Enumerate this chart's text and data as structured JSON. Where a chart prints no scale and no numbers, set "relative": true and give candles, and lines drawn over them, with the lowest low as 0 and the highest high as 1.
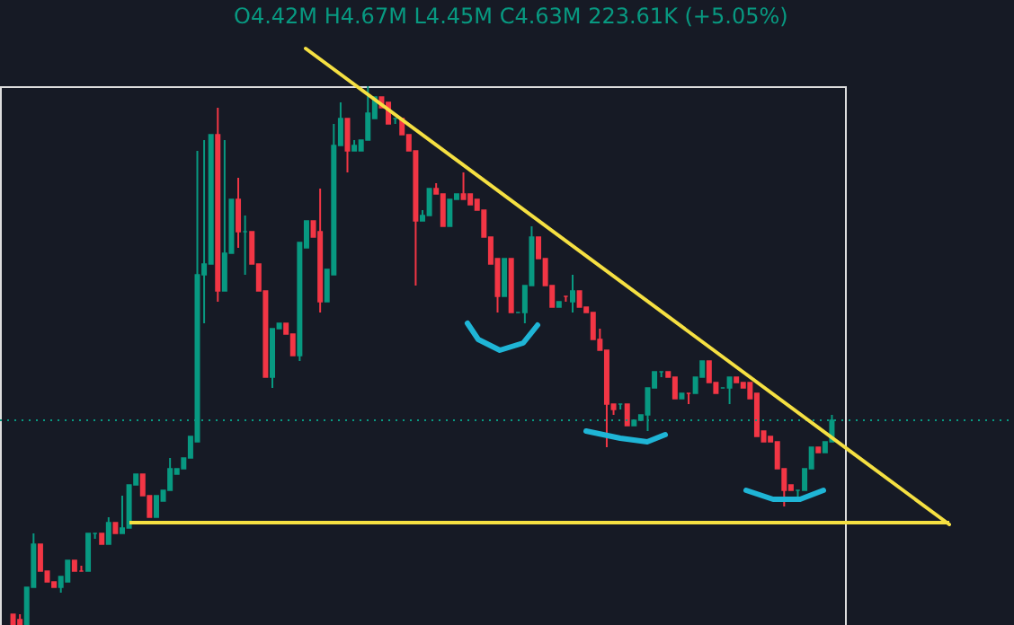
{
  "chart_data": {
    "type": "candlestick",
    "relative": true,
    "annotations": [
      "O4.42M H4.67M L4.45M C4.63M 223.61K (+5.05%)"
    ],
    "colors": [
      "#f23645",
      "#f23645",
      "#089981",
      "#089981",
      "#f23645",
      "#f23645",
      "#f23645",
      "#089981",
      "#089981",
      "#f23645",
      "#f23645",
      "#089981",
      "#089981",
      "#f23645",
      "#089981",
      "#f23645",
      "#089981",
      "#089981",
      "#089981",
      "#f23645",
      "#f23645",
      "#089981",
      "#089981",
      "#089981",
      "#089981",
      "#089981",
      "#089981",
      "#089981",
      "#089981",
      "#089981",
      "#f23645",
      "#089981",
      "#089981",
      "#f23645",
      "#089981",
      "#f23645",
      "#f23645",
      "#f23645",
      "#089981",
      "#089981",
      "#f23645",
      "#f23645",
      "#089981",
      "#089981",
      "#f23645",
      "#f23645",
      "#089981",
      "#089981",
      "#089981",
      "#f23645",
      "#089981",
      "#089981",
      "#089981",
      "#089981",
      "#f23645",
      "#f23645",
      "#089981",
      "#f23645",
      "#f23645",
      "#f23645",
      "#089981",
      "#089981",
      "#f23645",
      "#f23645",
      "#089981",
      "#089981",
      "#f23645",
      "#f23645",
      "#f23645",
      "#f23645",
      "#f23645",
      "#f23645",
      "#089981",
      "#f23645",
      "#089981",
      "#089981",
      "#089981",
      "#f23645",
      "#f23645",
      "#f23645",
      "#089981",
      "#f23645",
      "#089981",
      "#f23645",
      "#f23645",
      "#f23645",
      "#f23645",
      "#f23645",
      "#f23645",
      "#089981",
      "#f23645",
      "#089981",
      "#089981",
      "#089981",
      "#089981",
      "#089981",
      "#f23645",
      "#f23645",
      "#089981",
      "#f23645",
      "#089981",
      "#089981",
      "#f23645",
      "#f23645",
      "#089981",
      "#089981",
      "#f23645",
      "#f23645",
      "#f23645",
      "#f23645",
      "#f23645",
      "#f23645",
      "#f23645",
      "#f23645",
      "#f23645",
      "#089981",
      "#089981",
      "#089981",
      "#f23645",
      "#089981",
      "#089981"
    ],
    "categories": [
      null,
      null,
      null,
      null,
      null,
      null,
      null,
      null,
      null,
      null,
      null,
      null,
      null,
      null,
      null,
      null,
      null,
      null,
      null,
      null,
      null,
      null,
      null,
      null,
      null,
      null,
      null,
      null,
      null,
      null,
      null,
      null,
      null,
      null,
      null,
      null,
      null,
      null,
      null,
      null,
      null,
      null,
      null,
      null,
      null,
      null,
      null,
      null,
      null,
      null,
      null,
      null,
      null,
      null,
      null,
      null,
      null,
      null,
      null,
      null,
      null,
      null,
      null,
      null,
      null,
      null,
      null,
      null,
      null,
      null,
      null,
      null,
      null,
      null,
      null,
      null,
      null,
      null,
      null,
      null,
      null,
      null,
      null,
      null,
      null,
      null,
      null,
      null,
      null,
      null,
      null,
      null,
      null,
      null,
      null,
      null,
      null,
      null,
      null,
      null,
      null,
      null,
      null,
      null,
      null,
      null,
      null,
      null,
      null,
      null,
      null,
      null,
      null,
      null,
      null,
      null,
      null,
      null,
      null,
      null,
      null
    ],
    "ohlc": [
      [
        0.02,
        0.02,
        0,
        0
      ],
      [
        0.01,
        0.02,
        0,
        0
      ],
      [
        0,
        0.07,
        0,
        0.07
      ],
      [
        0.07,
        0.17,
        0.07,
        0.15
      ],
      [
        0.15,
        0.15,
        0.1,
        0.1
      ],
      [
        0.1,
        0.1,
        0.08,
        0.08
      ],
      [
        0.08,
        0.08,
        0.07,
        0.07
      ],
      [
        0.07,
        0.09,
        0.06,
        0.09
      ],
      [
        0.08,
        0.12,
        0.08,
        0.12
      ],
      [
        0.12,
        0.12,
        0.1,
        0.1
      ],
      [
        0.1,
        0.11,
        0.1,
        0.1
      ],
      [
        0.1,
        0.17,
        0.1,
        0.17
      ],
      [
        0.17,
        0.17,
        0.16,
        0.17
      ],
      [
        0.17,
        0.17,
        0.15,
        0.15
      ],
      [
        0.15,
        0.2,
        0.15,
        0.19
      ],
      [
        0.19,
        0.19,
        0.17,
        0.17
      ],
      [
        0.17,
        0.24,
        0.17,
        0.18
      ],
      [
        0.18,
        0.26,
        0.18,
        0.26
      ],
      [
        0.26,
        0.28,
        0.26,
        0.28
      ],
      [
        0.28,
        0.28,
        0.24,
        0.24
      ],
      [
        0.24,
        0.24,
        0.2,
        0.2
      ],
      [
        0.2,
        0.24,
        0.2,
        0.24
      ],
      [
        0.23,
        0.25,
        0.23,
        0.25
      ],
      [
        0.25,
        0.31,
        0.25,
        0.29
      ],
      [
        0.28,
        0.29,
        0.28,
        0.29
      ],
      [
        0.29,
        0.31,
        0.29,
        0.31
      ],
      [
        0.31,
        0.35,
        0.31,
        0.35
      ],
      [
        0.34,
        0.88,
        0.34,
        0.65
      ],
      [
        0.65,
        0.9,
        0.56,
        0.67
      ],
      [
        0.67,
        0.91,
        0.67,
        0.91
      ],
      [
        0.91,
        0.96,
        0.6,
        0.62
      ],
      [
        0.62,
        0.9,
        0.62,
        0.69
      ],
      [
        0.69,
        0.79,
        0.69,
        0.79
      ],
      [
        0.79,
        0.83,
        0.7,
        0.73
      ],
      [
        0.73,
        0.76,
        0.65,
        0.73
      ],
      [
        0.73,
        0.73,
        0.67,
        0.67
      ],
      [
        0.67,
        0.67,
        0.62,
        0.62
      ],
      [
        0.62,
        0.62,
        0.46,
        0.46
      ],
      [
        0.46,
        0.55,
        0.44,
        0.55
      ],
      [
        0.55,
        0.56,
        0.55,
        0.56
      ],
      [
        0.56,
        0.56,
        0.54,
        0.54
      ],
      [
        0.54,
        0.54,
        0.5,
        0.5
      ],
      [
        0.5,
        0.71,
        0.49,
        0.71
      ],
      [
        0.7,
        0.75,
        0.7,
        0.75
      ],
      [
        0.75,
        0.75,
        0.72,
        0.72
      ],
      [
        0.73,
        0.81,
        0.58,
        0.6
      ],
      [
        0.6,
        0.66,
        0.6,
        0.66
      ],
      [
        0.65,
        0.93,
        0.65,
        0.89
      ],
      [
        0.89,
        0.97,
        0.89,
        0.94
      ],
      [
        0.94,
        0.94,
        0.84,
        0.88
      ],
      [
        0.88,
        0.9,
        0.88,
        0.89
      ],
      [
        0.88,
        0.9,
        0.88,
        0.9
      ],
      [
        0.9,
        1.0,
        0.9,
        0.95
      ],
      [
        0.94,
        0.98,
        0.94,
        0.98
      ],
      [
        0.98,
        0.98,
        0.96,
        0.96
      ],
      [
        0.97,
        0.97,
        0.93,
        0.93
      ],
      [
        0.94,
        0.94,
        0.93,
        0.94
      ],
      [
        0.94,
        0.94,
        0.91,
        0.91
      ],
      [
        0.91,
        0.91,
        0.88,
        0.88
      ],
      [
        0.88,
        0.88,
        0.63,
        0.75
      ],
      [
        0.75,
        0.77,
        0.75,
        0.76
      ],
      [
        0.76,
        0.81,
        0.76,
        0.81
      ],
      [
        0.81,
        0.82,
        0.8,
        0.8
      ],
      [
        0.8,
        0.8,
        0.74,
        0.74
      ],
      [
        0.74,
        0.79,
        0.74,
        0.79
      ],
      [
        0.79,
        0.8,
        0.79,
        0.8
      ],
      [
        0.8,
        0.84,
        0.79,
        0.79
      ],
      [
        0.8,
        0.8,
        0.78,
        0.78
      ],
      [
        0.79,
        0.79,
        0.77,
        0.77
      ],
      [
        0.77,
        0.77,
        0.72,
        0.72
      ],
      [
        0.72,
        0.72,
        0.67,
        0.67
      ],
      [
        0.68,
        0.68,
        0.58,
        0.61
      ],
      [
        0.61,
        0.68,
        0.61,
        0.68
      ],
      [
        0.68,
        0.68,
        0.58,
        0.58
      ],
      [
        0.58,
        0.58,
        0.58,
        0.58
      ],
      [
        0.58,
        0.63,
        0.56,
        0.63
      ],
      [
        0.63,
        0.74,
        0.63,
        0.72
      ],
      [
        0.72,
        0.72,
        0.68,
        0.68
      ],
      [
        0.68,
        0.68,
        0.63,
        0.63
      ],
      [
        0.63,
        0.63,
        0.59,
        0.59
      ],
      [
        0.59,
        0.6,
        0.59,
        0.6
      ],
      [
        0.61,
        0.61,
        0.6,
        0.61
      ],
      [
        0.6,
        0.65,
        0.58,
        0.62
      ],
      [
        0.62,
        0.62,
        0.59,
        0.59
      ],
      [
        0.59,
        0.59,
        0.58,
        0.58
      ],
      [
        0.58,
        0.58,
        0.53,
        0.53
      ],
      [
        0.53,
        0.55,
        0.51,
        0.51
      ],
      [
        0.51,
        0.51,
        0.33,
        0.41
      ],
      [
        0.41,
        0.41,
        0.39,
        0.4
      ],
      [
        0.41,
        0.41,
        0.4,
        0.41
      ],
      [
        0.41,
        0.41,
        0.37,
        0.37
      ],
      [
        0.37,
        0.38,
        0.37,
        0.38
      ],
      [
        0.38,
        0.39,
        0.38,
        0.39
      ],
      [
        0.39,
        0.44,
        0.36,
        0.44
      ],
      [
        0.44,
        0.47,
        0.44,
        0.47
      ],
      [
        0.47,
        0.47,
        0.46,
        0.47
      ],
      [
        0.47,
        0.47,
        0.46,
        0.46
      ],
      [
        0.46,
        0.46,
        0.42,
        0.42
      ],
      [
        0.42,
        0.43,
        0.42,
        0.43
      ],
      [
        0.43,
        0.43,
        0.41,
        0.43
      ],
      [
        0.43,
        0.46,
        0.43,
        0.46
      ],
      [
        0.46,
        0.49,
        0.46,
        0.49
      ],
      [
        0.49,
        0.49,
        0.45,
        0.45
      ],
      [
        0.45,
        0.45,
        0.43,
        0.43
      ],
      [
        0.44,
        0.44,
        0.44,
        0.44
      ],
      [
        0.44,
        0.46,
        0.41,
        0.46
      ],
      [
        0.46,
        0.46,
        0.45,
        0.45
      ],
      [
        0.45,
        0.45,
        0.44,
        0.44
      ],
      [
        0.45,
        0.45,
        0.42,
        0.42
      ],
      [
        0.43,
        0.43,
        0.35,
        0.35
      ],
      [
        0.36,
        0.36,
        0.34,
        0.34
      ],
      [
        0.35,
        0.35,
        0.34,
        0.34
      ],
      [
        0.34,
        0.34,
        0.29,
        0.29
      ],
      [
        0.29,
        0.29,
        0.22,
        0.25
      ],
      [
        0.26,
        0.26,
        0.25,
        0.25
      ],
      [
        0.25,
        0.25,
        0.23,
        0.25
      ],
      [
        0.25,
        0.29,
        0.25,
        0.29
      ],
      [
        0.29,
        0.33,
        0.29,
        0.33
      ],
      [
        0.33,
        0.33,
        0.32,
        0.32
      ],
      [
        0.32,
        0.34,
        0.32,
        0.34
      ],
      [
        0.34,
        0.39,
        0.34,
        0.38
      ]
    ],
    "ref_lines": [
      {
        "axis": "y",
        "value": 0.38,
        "color": "#089981",
        "line_style": "dotted"
      },
      {
        "axis": "y",
        "value": 0.19,
        "color": "#f5e042",
        "line_style": "solid"
      }
    ]
  }
}
